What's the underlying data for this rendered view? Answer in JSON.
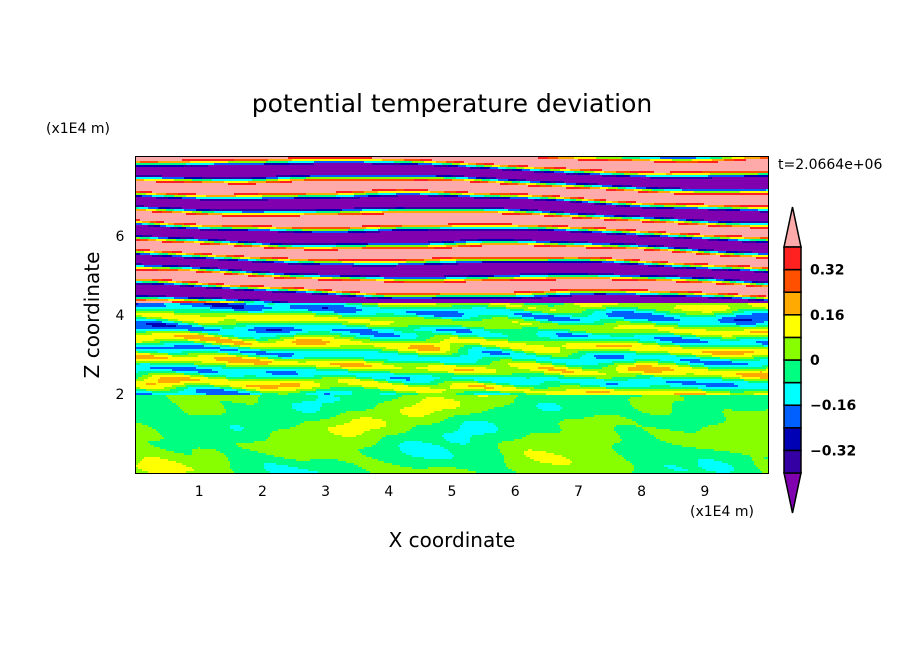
{
  "chart_data": {
    "type": "heatmap",
    "subtype": "filled-contour",
    "title": "potential temperature deviation",
    "xlabel": "X coordinate",
    "ylabel": "Z coordinate",
    "x_unit_label": "(x1E4 m)",
    "y_unit_label": "(x1E4 m)",
    "time_label": "t=2.0664e+06",
    "xlim": [
      0,
      10
    ],
    "ylim": [
      0,
      8
    ],
    "x_ticks": [
      1,
      2,
      3,
      4,
      5,
      6,
      7,
      8,
      9
    ],
    "y_ticks": [
      2,
      4,
      6
    ],
    "minor_tick_step": 0.5,
    "colorbar": {
      "levels": [
        -0.4,
        -0.32,
        -0.24,
        -0.16,
        -0.08,
        0,
        0.08,
        0.16,
        0.24,
        0.32,
        0.4
      ],
      "tick_labels": [
        "0.32",
        "0.16",
        "0",
        "−0.16",
        "−0.32"
      ],
      "tick_values": [
        0.32,
        0.16,
        0,
        -0.16,
        -0.32
      ],
      "colors_low_to_high": [
        "#3400a4",
        "#0000b4",
        "#0060ff",
        "#00ffff",
        "#00ff80",
        "#88ff00",
        "#ffff00",
        "#ffaa00",
        "#ff5000",
        "#ff2020"
      ],
      "under_color": "#8000b0",
      "over_color": "#ffaaaa",
      "extend": "both"
    },
    "field_structure": [
      {
        "z_range": [
          0,
          2
        ],
        "description_values": [
          -0.08,
          0.08
        ]
      },
      {
        "z_range": [
          2,
          4.3
        ],
        "description_values": [
          -0.2,
          0.3
        ]
      },
      {
        "z_range": [
          4.3,
          8
        ],
        "description_values": [
          -0.5,
          0.5
        ],
        "stripe_period_z": 0.8
      }
    ]
  }
}
